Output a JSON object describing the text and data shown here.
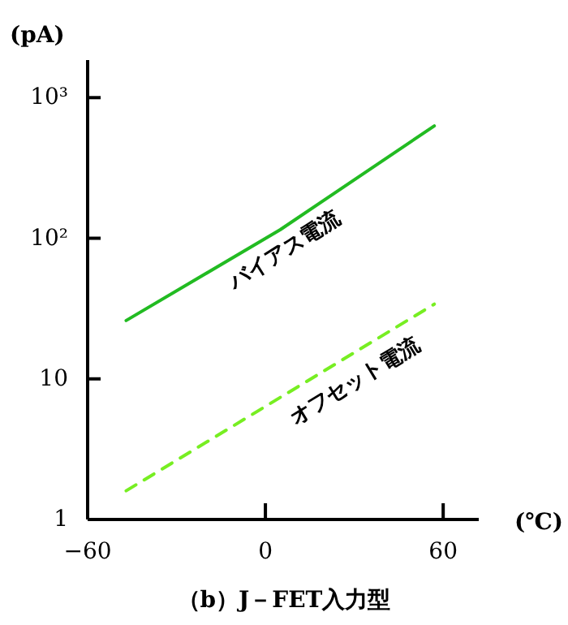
{
  "chart_data": {
    "type": "line",
    "title": "（b）J－FET入力型",
    "xlabel": "(℃)",
    "ylabel": "(pA)",
    "log": "y",
    "xlim": [
      -60,
      72
    ],
    "xticks": [
      -60,
      0,
      60
    ],
    "ylim": [
      1,
      1850
    ],
    "yticks": [
      1,
      10,
      {
        "value": 100,
        "label": "10²"
      },
      {
        "value": 1000,
        "label": "10³"
      }
    ],
    "grid": false,
    "marker": "none",
    "series": [
      {
        "name": "バイアス電流",
        "color": "#22bb22",
        "line_style": "solid",
        "x": [
          -47,
          5,
          57
        ],
        "values": [
          26,
          115,
          630
        ]
      },
      {
        "name": "オフセット電流",
        "color": "#77ee22",
        "line_style": "dashed",
        "x": [
          -47,
          57
        ],
        "values": [
          1.6,
          34
        ]
      }
    ]
  }
}
